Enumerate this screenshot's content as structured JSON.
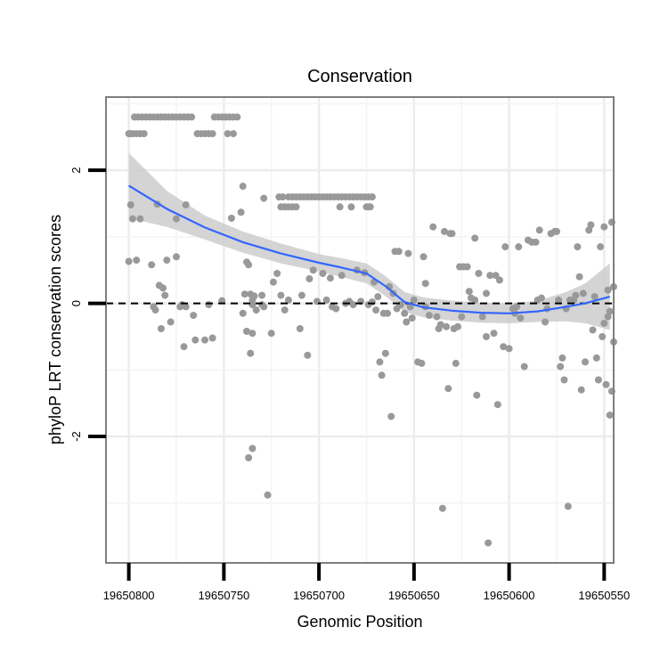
{
  "chart_data": {
    "type": "scatter",
    "title": "Conservation",
    "xlabel": "Genomic Position",
    "ylabel": "phyloP LRT conservation scores",
    "xlim": [
      19650812,
      19650545
    ],
    "ylim": [
      -3.9,
      3.1
    ],
    "x_reversed": true,
    "x_ticks": [
      19650800,
      19650750,
      19650700,
      19650650,
      19650600,
      19650550
    ],
    "x_tick_labels": [
      "19650800",
      "19650750",
      "19650700",
      "19650650",
      "19650600",
      "19650550"
    ],
    "x_minor_grid": [
      19650775,
      19650725,
      19650675,
      19650625,
      19650575
    ],
    "y_ticks": [
      -2,
      0,
      2
    ],
    "y_tick_labels": [
      "-2",
      "0",
      "2"
    ],
    "y_minor_grid": [
      -3,
      -1,
      1,
      3
    ],
    "hline": {
      "y": 0,
      "style": "dashed",
      "color": "#000000"
    },
    "colors": {
      "points": "#999999",
      "smooth": "#3366ff",
      "band": "#cccccc",
      "panel_border": "#7f7f7f"
    },
    "points": [
      [
        19650800,
        2.55
      ],
      [
        19650799,
        2.55
      ],
      [
        19650798,
        2.55
      ],
      [
        19650796,
        2.55
      ],
      [
        19650794,
        2.55
      ],
      [
        19650792,
        2.55
      ],
      [
        19650797,
        2.8
      ],
      [
        19650795,
        2.8
      ],
      [
        19650793,
        2.8
      ],
      [
        19650791,
        2.8
      ],
      [
        19650789,
        2.8
      ],
      [
        19650787,
        2.8
      ],
      [
        19650785,
        2.8
      ],
      [
        19650783,
        2.8
      ],
      [
        19650781,
        2.8
      ],
      [
        19650779,
        2.8
      ],
      [
        19650777,
        2.8
      ],
      [
        19650775,
        2.8
      ],
      [
        19650773,
        2.8
      ],
      [
        19650771,
        2.8
      ],
      [
        19650769,
        2.8
      ],
      [
        19650767,
        2.8
      ],
      [
        19650755,
        2.8
      ],
      [
        19650753,
        2.8
      ],
      [
        19650751,
        2.8
      ],
      [
        19650749,
        2.8
      ],
      [
        19650747,
        2.8
      ],
      [
        19650745,
        2.8
      ],
      [
        19650743,
        2.8
      ],
      [
        19650764,
        2.55
      ],
      [
        19650762,
        2.55
      ],
      [
        19650760,
        2.55
      ],
      [
        19650758,
        2.55
      ],
      [
        19650756,
        2.55
      ],
      [
        19650748,
        2.55
      ],
      [
        19650745,
        2.55
      ],
      [
        19650799,
        1.48
      ],
      [
        19650798,
        1.27
      ],
      [
        19650794,
        1.27
      ],
      [
        19650785,
        1.49
      ],
      [
        19650775,
        1.27
      ],
      [
        19650770,
        1.48
      ],
      [
        19650746,
        1.28
      ],
      [
        19650741,
        1.37
      ],
      [
        19650740,
        1.76
      ],
      [
        19650800,
        0.63
      ],
      [
        19650796,
        0.65
      ],
      [
        19650788,
        0.58
      ],
      [
        19650780,
        0.65
      ],
      [
        19650775,
        0.7
      ],
      [
        19650738,
        0.62
      ],
      [
        19650737,
        0.58
      ],
      [
        19650784,
        0.27
      ],
      [
        19650782,
        0.23
      ],
      [
        19650781,
        0.12
      ],
      [
        19650751,
        0.04
      ],
      [
        19650739,
        0.14
      ],
      [
        19650736,
        0.14
      ],
      [
        19650735,
        0.05
      ],
      [
        19650734,
        0.11
      ],
      [
        19650787,
        -0.05
      ],
      [
        19650786,
        -0.1
      ],
      [
        19650773,
        -0.05
      ],
      [
        19650772,
        -0.02
      ],
      [
        19650770,
        -0.05
      ],
      [
        19650758,
        -0.02
      ],
      [
        19650740,
        -0.15
      ],
      [
        19650735,
        -0.02
      ],
      [
        19650733,
        -0.1
      ],
      [
        19650730,
        -0.02
      ],
      [
        19650783,
        -0.38
      ],
      [
        19650778,
        -0.28
      ],
      [
        19650771,
        -0.65
      ],
      [
        19650766,
        -0.18
      ],
      [
        19650765,
        -0.55
      ],
      [
        19650760,
        -0.55
      ],
      [
        19650756,
        -0.52
      ],
      [
        19650738,
        -0.42
      ],
      [
        19650736,
        -0.75
      ],
      [
        19650735,
        -0.45
      ],
      [
        19650737,
        -2.32
      ],
      [
        19650735,
        -2.18
      ],
      [
        19650727,
        -2.88
      ],
      [
        19650721,
        1.6
      ],
      [
        19650719,
        1.6
      ],
      [
        19650716,
        1.6
      ],
      [
        19650714,
        1.6
      ],
      [
        19650712,
        1.6
      ],
      [
        19650710,
        1.6
      ],
      [
        19650708,
        1.6
      ],
      [
        19650706,
        1.6
      ],
      [
        19650704,
        1.6
      ],
      [
        19650702,
        1.6
      ],
      [
        19650700,
        1.6
      ],
      [
        19650698,
        1.6
      ],
      [
        19650696,
        1.6
      ],
      [
        19650694,
        1.6
      ],
      [
        19650692,
        1.6
      ],
      [
        19650690,
        1.6
      ],
      [
        19650688,
        1.6
      ],
      [
        19650686,
        1.6
      ],
      [
        19650684,
        1.6
      ],
      [
        19650682,
        1.6
      ],
      [
        19650680,
        1.6
      ],
      [
        19650678,
        1.6
      ],
      [
        19650676,
        1.6
      ],
      [
        19650674,
        1.6
      ],
      [
        19650672,
        1.6
      ],
      [
        19650720,
        1.45
      ],
      [
        19650718,
        1.45
      ],
      [
        19650716,
        1.45
      ],
      [
        19650714,
        1.45
      ],
      [
        19650712,
        1.45
      ],
      [
        19650689,
        1.45
      ],
      [
        19650683,
        1.45
      ],
      [
        19650675,
        1.45
      ],
      [
        19650674,
        1.45
      ],
      [
        19650673,
        1.45
      ],
      [
        19650729,
        1.58
      ],
      [
        19650722,
        0.45
      ],
      [
        19650705,
        0.37
      ],
      [
        19650703,
        0.5
      ],
      [
        19650698,
        0.45
      ],
      [
        19650694,
        0.38
      ],
      [
        19650688,
        0.42
      ],
      [
        19650680,
        0.5
      ],
      [
        19650676,
        0.46
      ],
      [
        19650671,
        0.32
      ],
      [
        19650669,
        0.1
      ],
      [
        19650730,
        0.12
      ],
      [
        19650724,
        0.32
      ],
      [
        19650720,
        0.12
      ],
      [
        19650716,
        0.05
      ],
      [
        19650709,
        0.12
      ],
      [
        19650701,
        0.03
      ],
      [
        19650696,
        0.05
      ],
      [
        19650693,
        -0.05
      ],
      [
        19650691,
        -0.08
      ],
      [
        19650686,
        0.0
      ],
      [
        19650684,
        0.03
      ],
      [
        19650682,
        -0.02
      ],
      [
        19650678,
        0.03
      ],
      [
        19650729,
        -0.05
      ],
      [
        19650725,
        -0.45
      ],
      [
        19650718,
        -0.1
      ],
      [
        19650710,
        -0.38
      ],
      [
        19650706,
        -0.78
      ],
      [
        19650674,
        -0.02
      ],
      [
        19650672,
        0.02
      ],
      [
        19650670,
        -0.1
      ],
      [
        19650668,
        -0.88
      ],
      [
        19650667,
        -1.08
      ],
      [
        19650665,
        -0.75
      ],
      [
        19650662,
        -1.7
      ],
      [
        19650666,
        -0.15
      ],
      [
        19650664,
        -0.15
      ],
      [
        19650663,
        0.25
      ],
      [
        19650661,
        0.15
      ],
      [
        19650660,
        0.78
      ],
      [
        19650658,
        0.78
      ],
      [
        19650659,
        -0.08
      ],
      [
        19650657,
        -0.02
      ],
      [
        19650655,
        -0.15
      ],
      [
        19650654,
        -0.28
      ],
      [
        19650653,
        0.75
      ],
      [
        19650652,
        -0.05
      ],
      [
        19650651,
        -0.22
      ],
      [
        19650650,
        0.05
      ],
      [
        19650648,
        -0.88
      ],
      [
        19650646,
        -0.9
      ],
      [
        19650645,
        0.7
      ],
      [
        19650644,
        -0.05
      ],
      [
        19650642,
        -0.18
      ],
      [
        19650640,
        1.15
      ],
      [
        19650638,
        -0.2
      ],
      [
        19650636,
        -0.32
      ],
      [
        19650634,
        1.08
      ],
      [
        19650632,
        -1.28
      ],
      [
        19650631,
        1.05
      ],
      [
        19650630,
        1.05
      ],
      [
        19650629,
        -0.38
      ],
      [
        19650628,
        -0.9
      ],
      [
        19650626,
        0.55
      ],
      [
        19650624,
        0.55
      ],
      [
        19650622,
        0.55
      ],
      [
        19650621,
        0.18
      ],
      [
        19650620,
        0.08
      ],
      [
        19650637,
        -0.38
      ],
      [
        19650635,
        -3.08
      ],
      [
        19650633,
        -0.35
      ],
      [
        19650627,
        -0.35
      ],
      [
        19650625,
        -0.2
      ],
      [
        19650618,
        0.05
      ],
      [
        19650617,
        -1.38
      ],
      [
        19650616,
        0.45
      ],
      [
        19650614,
        -0.2
      ],
      [
        19650612,
        -0.5
      ],
      [
        19650611,
        -3.6
      ],
      [
        19650610,
        0.42
      ],
      [
        19650608,
        -0.45
      ],
      [
        19650607,
        0.42
      ],
      [
        19650606,
        -1.52
      ],
      [
        19650605,
        0.35
      ],
      [
        19650618,
        0.98
      ],
      [
        19650603,
        -0.65
      ],
      [
        19650602,
        0.85
      ],
      [
        19650600,
        -0.68
      ],
      [
        19650598,
        -0.08
      ],
      [
        19650597,
        -0.15
      ],
      [
        19650596,
        -0.05
      ],
      [
        19650595,
        0.85
      ],
      [
        19650594,
        -0.22
      ],
      [
        19650592,
        -0.95
      ],
      [
        19650590,
        0.95
      ],
      [
        19650588,
        0.92
      ],
      [
        19650586,
        0.92
      ],
      [
        19650584,
        1.1
      ],
      [
        19650583,
        0.08
      ],
      [
        19650581,
        -0.28
      ],
      [
        19650580,
        -0.08
      ],
      [
        19650578,
        1.05
      ],
      [
        19650576,
        1.08
      ],
      [
        19650575,
        1.08
      ],
      [
        19650574,
        0.05
      ],
      [
        19650573,
        -0.95
      ],
      [
        19650572,
        -0.82
      ],
      [
        19650571,
        -1.15
      ],
      [
        19650570,
        -0.08
      ],
      [
        19650569,
        -3.05
      ],
      [
        19650568,
        0.05
      ],
      [
        19650566,
        0.05
      ],
      [
        19650564,
        0.85
      ],
      [
        19650563,
        0.4
      ],
      [
        19650562,
        -1.3
      ],
      [
        19650561,
        0.15
      ],
      [
        19650560,
        -0.88
      ],
      [
        19650558,
        1.1
      ],
      [
        19650557,
        1.18
      ],
      [
        19650556,
        -0.4
      ],
      [
        19650555,
        0.1
      ],
      [
        19650554,
        -0.82
      ],
      [
        19650553,
        -1.15
      ],
      [
        19650552,
        0.85
      ],
      [
        19650551,
        -0.5
      ],
      [
        19650550,
        1.15
      ],
      [
        19650549,
        -1.22
      ],
      [
        19650548,
        0.2
      ],
      [
        19650547,
        -1.68
      ],
      [
        19650546,
        -1.32
      ],
      [
        19650545,
        0.25
      ],
      [
        19650548,
        -0.2
      ],
      [
        19650547,
        -0.12
      ],
      [
        19650546,
        1.22
      ],
      [
        19650545,
        -0.58
      ],
      [
        19650550,
        -0.3
      ],
      [
        19650565,
        0.12
      ],
      [
        19650585,
        0.05
      ],
      [
        19650612,
        0.15
      ],
      [
        19650644,
        0.3
      ]
    ],
    "smooth": {
      "x": [
        19650800,
        19650780,
        19650760,
        19650740,
        19650720,
        19650700,
        19650690,
        19650675,
        19650665,
        19650655,
        19650645,
        19650630,
        19650615,
        19650600,
        19650585,
        19650570,
        19650560,
        19650547
      ],
      "y": [
        1.77,
        1.42,
        1.14,
        0.92,
        0.75,
        0.61,
        0.55,
        0.45,
        0.26,
        0.02,
        -0.06,
        -0.11,
        -0.14,
        -0.15,
        -0.12,
        -0.05,
        0.0,
        0.1
      ],
      "lower": [
        1.28,
        1.15,
        0.96,
        0.76,
        0.6,
        0.48,
        0.41,
        0.3,
        0.11,
        -0.13,
        -0.21,
        -0.26,
        -0.29,
        -0.3,
        -0.28,
        -0.27,
        -0.3,
        -0.4
      ],
      "upper": [
        2.26,
        1.69,
        1.32,
        1.08,
        0.9,
        0.74,
        0.69,
        0.6,
        0.41,
        0.17,
        0.09,
        0.04,
        0.01,
        0.0,
        0.04,
        0.17,
        0.3,
        0.6
      ]
    }
  }
}
